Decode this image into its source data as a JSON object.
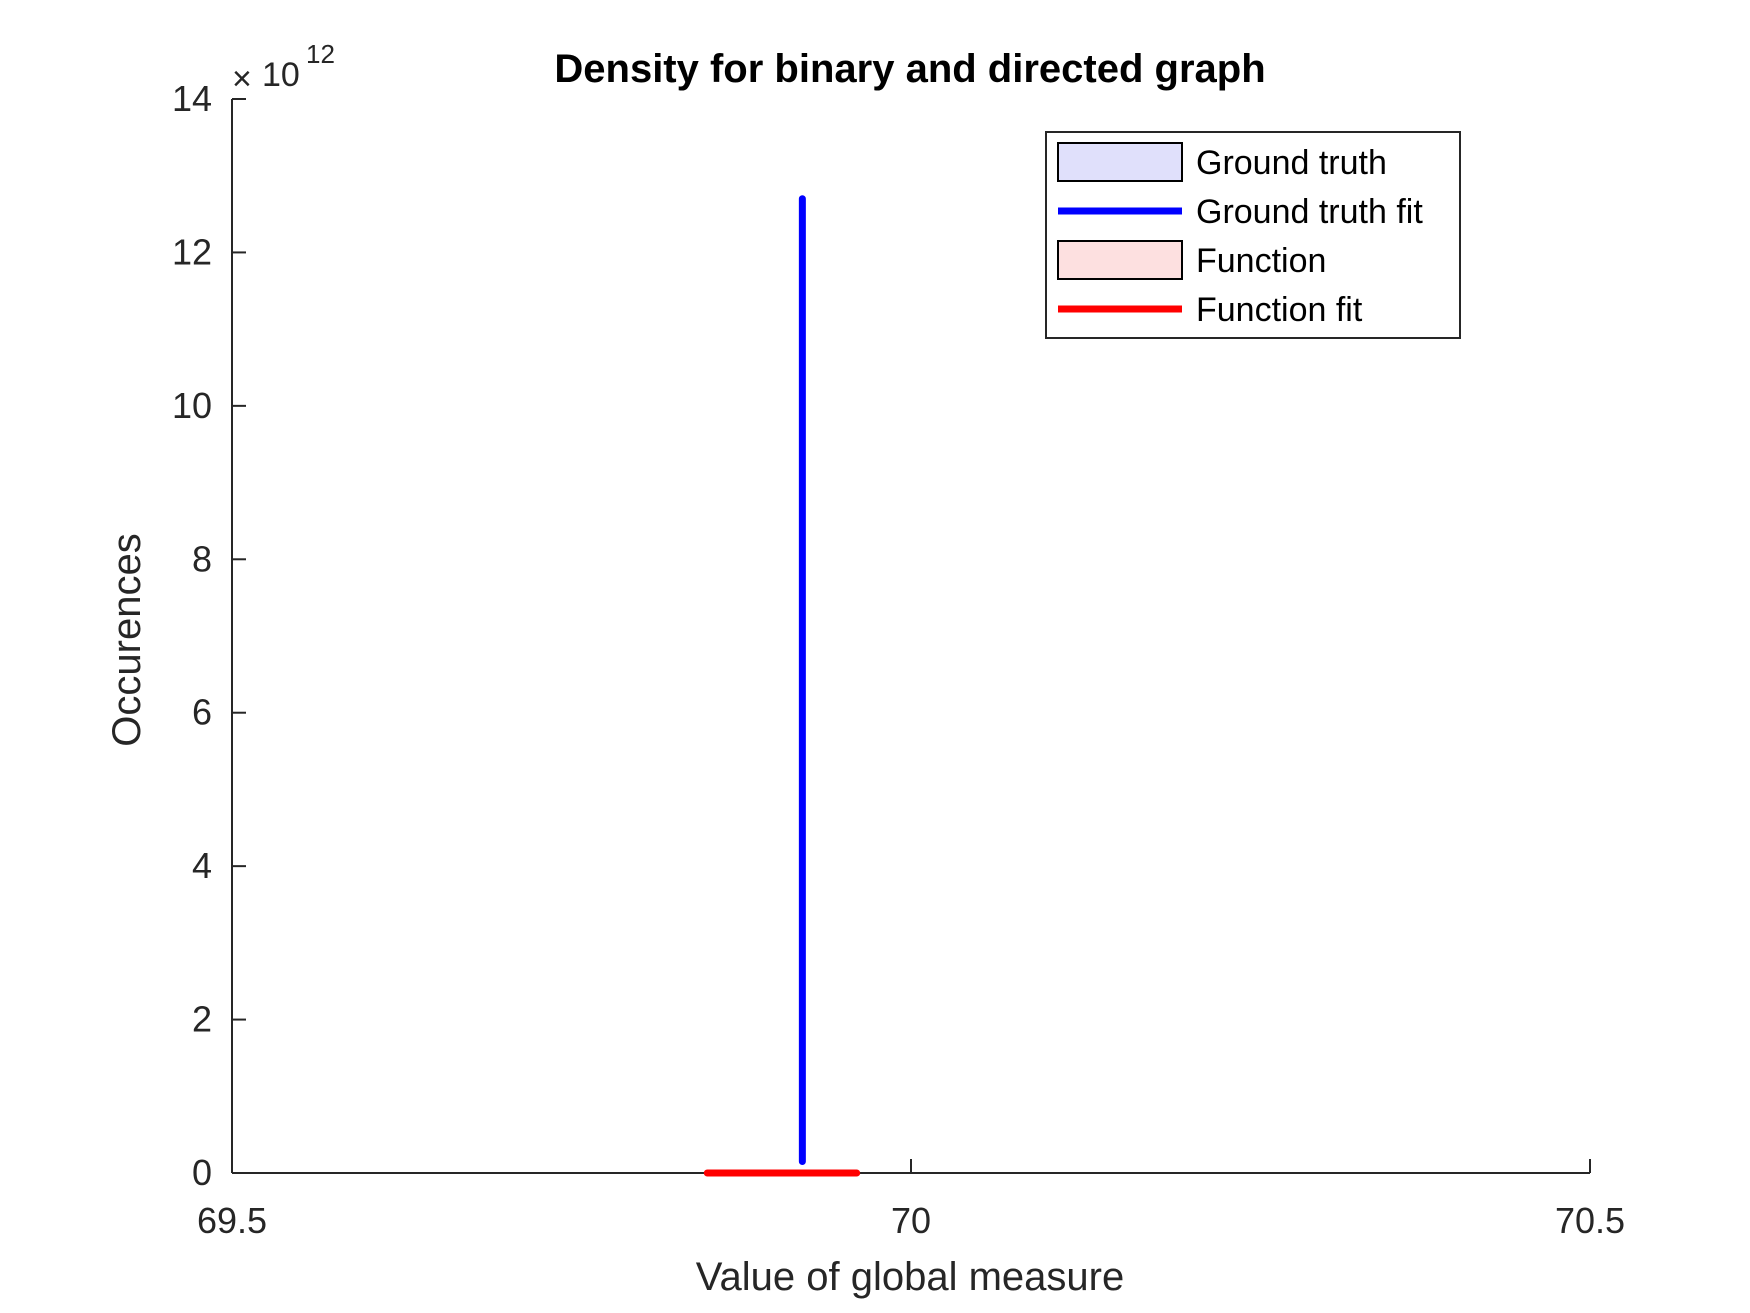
{
  "chart_data": {
    "type": "line",
    "title": "Density for binary and directed graph",
    "xlabel": "Value of global measure",
    "ylabel": "Occurences",
    "y_exponent": {
      "base": "10",
      "power": "12"
    },
    "xlim": [
      69.5,
      70.5
    ],
    "ylim": [
      0,
      14
    ],
    "x_ticks": [
      69.5,
      70,
      70.5
    ],
    "x_tick_labels": [
      "69.5",
      "70",
      "70.5"
    ],
    "y_ticks": [
      0,
      2,
      4,
      6,
      8,
      10,
      12,
      14
    ],
    "y_tick_labels": [
      "0",
      "2",
      "4",
      "6",
      "8",
      "10",
      "12",
      "14"
    ],
    "grid": false,
    "legend_position": "top-right",
    "legend": [
      {
        "label": "Ground truth",
        "kind": "patch",
        "fill": "#e0e0fb",
        "stroke": "#000000"
      },
      {
        "label": "Ground truth fit",
        "kind": "line",
        "color": "#0000ff"
      },
      {
        "label": "Function",
        "kind": "patch",
        "fill": "#fde0e0",
        "stroke": "#000000"
      },
      {
        "label": "Function fit",
        "kind": "line",
        "color": "#ff0000"
      }
    ],
    "series": [
      {
        "name": "Ground truth fit",
        "color": "#0000ff",
        "x": [
          69.92,
          69.92
        ],
        "y": [
          0.15,
          12.7
        ]
      },
      {
        "name": "Function fit",
        "color": "#ff0000",
        "x": [
          69.85,
          69.96
        ],
        "y": [
          0,
          0
        ]
      }
    ]
  }
}
